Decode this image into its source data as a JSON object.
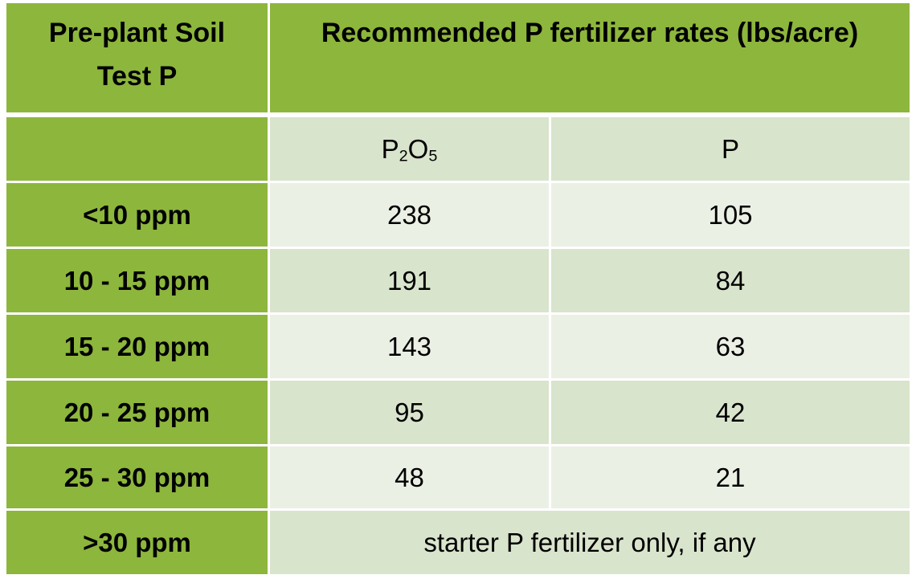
{
  "table": {
    "header": {
      "col1": "Pre-plant Soil Test P",
      "col2": "Recommended P fertilizer rates (lbs/acre)"
    },
    "subheader": {
      "col1": "",
      "p2o5_main": "P",
      "p2o5_sub1": "2",
      "p2o5_o": "O",
      "p2o5_sub2": "5",
      "p": "P"
    },
    "rows": [
      {
        "label": "<10 ppm",
        "p2o5": "238",
        "p": "105"
      },
      {
        "label": "10 - 15 ppm",
        "p2o5": "191",
        "p": "84"
      },
      {
        "label": "15 - 20 ppm",
        "p2o5": "143",
        "p": "63"
      },
      {
        "label": "20 - 25 ppm",
        "p2o5": "95",
        "p": "42"
      },
      {
        "label": "25 - 30 ppm",
        "p2o5": "48",
        "p": "21"
      }
    ],
    "last_row": {
      "label": ">30 ppm",
      "note": "starter P fertilizer only, if any"
    }
  },
  "colors": {
    "header_green": "#8db63c",
    "band_light": "#d9e4cc",
    "band_lighter": "#ebf0e5"
  }
}
